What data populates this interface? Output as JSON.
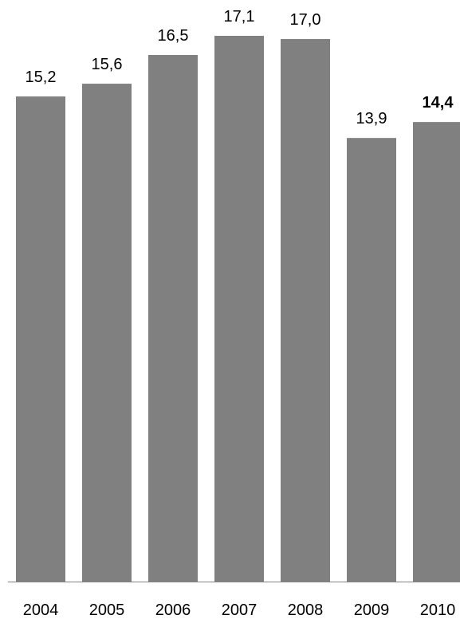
{
  "chart_data": {
    "type": "bar",
    "categories": [
      "2004",
      "2005",
      "2006",
      "2007",
      "2008",
      "2009",
      "2010"
    ],
    "values": [
      15.2,
      15.6,
      16.5,
      17.1,
      17.0,
      13.9,
      14.4
    ],
    "value_labels": [
      "15,2",
      "15,6",
      "16,5",
      "17,1",
      "17,0",
      "13,9",
      "14,4"
    ],
    "color": "#808080"
  }
}
